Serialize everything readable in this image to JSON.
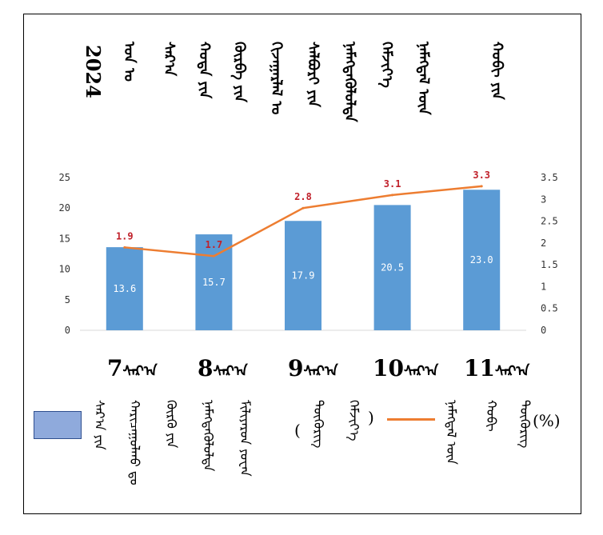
{
  "title": {
    "year": "2024",
    "columns": [
      "ᠣᠨ ᠤ",
      "ᠰᠠᠷ᠎ᠠ",
      "ᠬᠣᠲᠠ ᠶᠢᠨ",
      "ᠬᠦᠷᠪᠡ ᠶᠢᠨ",
      "ᠬᠢᠵᠠᠭᠠᠷᠯᠠᠯ ᠤ",
      "ᠰᠠᠯᠪᠤᠷᠢ ᠶᠢᠨ",
      "ᠨᠡᠮᠡᠭᠳᠡᠭᠦᠯᠦᠯᠲᠡ",
      "ᠬᠡᠮᠵᠢᠶ᠎ᠡ",
      "ᠨᠡᠮᠡᠭᠳᠡᠯ ᠦᠨ",
      "ᠬᠤᠪᠢ ᠶᠢᠨ"
    ]
  },
  "chart_data": {
    "type": "bar",
    "categories": [
      "7",
      "8",
      "9",
      "10",
      "11"
    ],
    "category_suffix": "ᠰᠠᠷ᠎ᠠ",
    "series": [
      {
        "values": [
          13.6,
          15.7,
          17.9,
          20.5,
          23.0
        ],
        "labels": [
          "13.6",
          "15.7",
          "17.9",
          "20.5",
          "23.0"
        ],
        "color": "#5b9bd5",
        "axis": "left"
      },
      {
        "values": [
          1.9,
          1.7,
          2.8,
          3.1,
          3.3
        ],
        "labels": [
          "1.9",
          "1.7",
          "2.8",
          "3.1",
          "3.3"
        ],
        "color": "#ed7d31",
        "axis": "right",
        "type": "line"
      }
    ],
    "left_axis": {
      "ylim": [
        0,
        25
      ],
      "ticks": [
        "0",
        "5",
        "10",
        "15",
        "20",
        "25"
      ]
    },
    "right_axis": {
      "ylim": [
        0,
        3.5
      ],
      "ticks": [
        "0",
        "0.5",
        "1",
        "1.5",
        "2",
        "2.5",
        "3",
        "3.5"
      ]
    },
    "grid": false,
    "legend_position": "bottom",
    "legend": {
      "bar_text": [
        "ᠰᠠᠷ᠎ᠠ ᠶᠢᠨ",
        "ᠬᠠᠷᠢᠴᠠᠭᠤᠯᠬᠤ ᠳᠤ",
        "ᠬᠦᠷᠬᠦ ᠶᠢᠨ",
        "ᠨᠡᠮᠡᠭᠳᠡᠭᠦᠯᠦᠯᠲᠡ",
        "ᠮᠢᠯᠢᠶᠠᠷᠳ ᠶᠤᠸᠠᠨ",
        "ᠲᠥᠭᠦᠷᠢᠭ"
      ],
      "line_text": [
        "ᠨᠡᠮᠡᠭᠳᠡᠯ ᠦᠨ",
        "ᠬᠤᠪᠢ",
        "ᠬᠡᠮᠵᠢᠶ᠎ᠡ"
      ],
      "open_paren": "(",
      "close_paren": ")",
      "unit": "(%)"
    },
    "colors": {
      "bar": "#5b9bd5",
      "line": "#ed7d31",
      "rate_label": "#c0202a",
      "legend_swatch": "#8faadc"
    }
  }
}
